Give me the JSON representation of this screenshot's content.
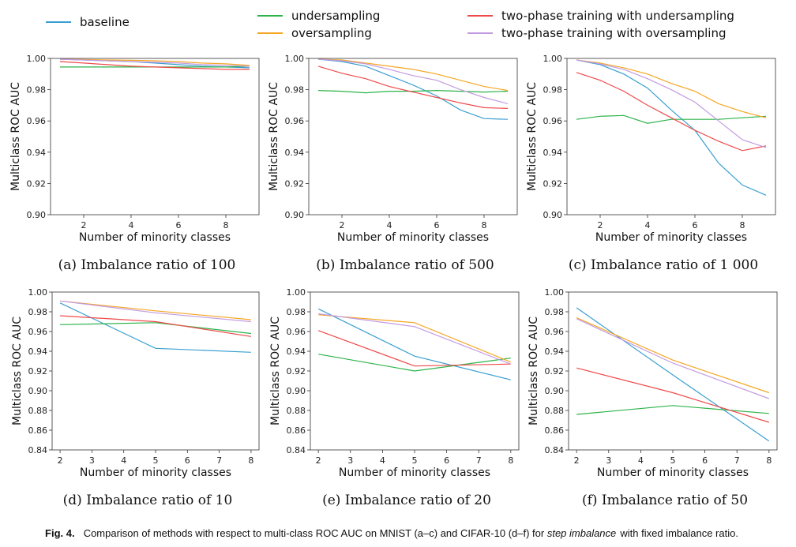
{
  "legend": [
    {
      "name": "baseline",
      "color": "#3a9fd1"
    },
    {
      "name": "undersampling",
      "color": "#2db34a"
    },
    {
      "name": "oversampling",
      "color": "#f5a623"
    },
    {
      "name": "two-phase training with undersampling",
      "color": "#ef4a4a"
    },
    {
      "name": "two-phase training with oversampling",
      "color": "#c39be0"
    }
  ],
  "caption": {
    "label": "Fig. 4.",
    "text_before": "Comparison of methods with respect to multi-class ROC AUC on MNIST (a–c) and CIFAR-10 (d–f) for ",
    "text_italic": "step imbalance",
    "text_after": " with fixed imbalance ratio."
  },
  "chart_data": [
    {
      "type": "line",
      "subtitle": "(a) Imbalance ratio of 100",
      "xlabel": "Number of minority classes",
      "ylabel": "Multiclass ROC AUC",
      "xlim": [
        0.6,
        9.4
      ],
      "ylim": [
        0.9,
        1.0
      ],
      "xticks": [
        2,
        4,
        6,
        8
      ],
      "yticks": [
        0.9,
        0.92,
        0.94,
        0.96,
        0.98,
        1.0
      ],
      "ytick_labels": [
        "0.90",
        "0.92",
        "0.94",
        "0.96",
        "0.98",
        "1.00"
      ],
      "x": [
        1,
        2,
        3,
        4,
        5,
        6,
        7,
        8,
        9
      ],
      "series": [
        {
          "name": "baseline",
          "values": [
            0.9995,
            0.999,
            0.9985,
            0.998,
            0.997,
            0.996,
            0.995,
            0.9945,
            0.994
          ]
        },
        {
          "name": "undersampling",
          "values": [
            0.9945,
            0.9945,
            0.9945,
            0.9945,
            0.9945,
            0.9945,
            0.9945,
            0.9945,
            0.995
          ]
        },
        {
          "name": "oversampling",
          "values": [
            0.9995,
            0.9993,
            0.999,
            0.9988,
            0.9985,
            0.998,
            0.997,
            0.9965,
            0.9955
          ]
        },
        {
          "name": "two-phase training with undersampling",
          "values": [
            0.998,
            0.997,
            0.996,
            0.995,
            0.9945,
            0.994,
            0.9935,
            0.993,
            0.993
          ]
        },
        {
          "name": "two-phase training with oversampling",
          "values": [
            0.9995,
            0.999,
            0.9985,
            0.998,
            0.9975,
            0.997,
            0.996,
            0.9955,
            0.995
          ]
        }
      ]
    },
    {
      "type": "line",
      "subtitle": "(b) Imbalance ratio of 500",
      "xlabel": "Number of minority classes",
      "ylabel": "Multiclass ROC AUC",
      "xlim": [
        0.6,
        9.4
      ],
      "ylim": [
        0.9,
        1.0
      ],
      "xticks": [
        2,
        4,
        6,
        8
      ],
      "yticks": [
        0.9,
        0.92,
        0.94,
        0.96,
        0.98,
        1.0
      ],
      "ytick_labels": [
        "0.90",
        "0.92",
        "0.94",
        "0.96",
        "0.98",
        "1.00"
      ],
      "x": [
        1,
        2,
        3,
        4,
        5,
        6,
        7,
        8,
        9
      ],
      "series": [
        {
          "name": "baseline",
          "values": [
            0.9995,
            0.998,
            0.995,
            0.989,
            0.983,
            0.976,
            0.967,
            0.9615,
            0.961
          ]
        },
        {
          "name": "undersampling",
          "values": [
            0.9795,
            0.979,
            0.978,
            0.979,
            0.979,
            0.9795,
            0.979,
            0.9785,
            0.979
          ]
        },
        {
          "name": "oversampling",
          "values": [
            0.9995,
            0.999,
            0.997,
            0.995,
            0.993,
            0.99,
            0.986,
            0.982,
            0.9795
          ]
        },
        {
          "name": "two-phase training with undersampling",
          "values": [
            0.995,
            0.9905,
            0.987,
            0.982,
            0.9785,
            0.975,
            0.9715,
            0.9685,
            0.968
          ]
        },
        {
          "name": "two-phase training with oversampling",
          "values": [
            0.9995,
            0.9985,
            0.9965,
            0.993,
            0.989,
            0.986,
            0.98,
            0.975,
            0.971
          ]
        }
      ]
    },
    {
      "type": "line",
      "subtitle": "(c) Imbalance ratio of 1 000",
      "xlabel": "Number of minority classes",
      "ylabel": "Multiclass ROC AUC",
      "xlim": [
        0.6,
        9.4
      ],
      "ylim": [
        0.9,
        1.0
      ],
      "xticks": [
        2,
        4,
        6,
        8
      ],
      "yticks": [
        0.9,
        0.92,
        0.94,
        0.96,
        0.98,
        1.0
      ],
      "ytick_labels": [
        "0.90",
        "0.92",
        "0.94",
        "0.96",
        "0.98",
        "1.00"
      ],
      "x": [
        1,
        2,
        3,
        4,
        5,
        6,
        7,
        8,
        9
      ],
      "series": [
        {
          "name": "baseline",
          "values": [
            0.999,
            0.996,
            0.99,
            0.981,
            0.967,
            0.954,
            0.933,
            0.919,
            0.9125
          ]
        },
        {
          "name": "undersampling",
          "values": [
            0.961,
            0.963,
            0.9635,
            0.9585,
            0.961,
            0.961,
            0.961,
            0.962,
            0.963
          ]
        },
        {
          "name": "oversampling",
          "values": [
            0.999,
            0.997,
            0.994,
            0.99,
            0.984,
            0.979,
            0.971,
            0.966,
            0.962
          ]
        },
        {
          "name": "two-phase training with undersampling",
          "values": [
            0.991,
            0.986,
            0.979,
            0.97,
            0.962,
            0.954,
            0.947,
            0.941,
            0.944
          ]
        },
        {
          "name": "two-phase training with oversampling",
          "values": [
            0.999,
            0.9965,
            0.993,
            0.987,
            0.98,
            0.972,
            0.96,
            0.948,
            0.943
          ]
        }
      ]
    },
    {
      "type": "line",
      "subtitle": "(d) Imbalance ratio of 10",
      "xlabel": "Number of minority classes",
      "ylabel": "Multiclass ROC AUC",
      "xlim": [
        1.75,
        8.25
      ],
      "ylim": [
        0.84,
        1.0
      ],
      "xticks": [
        2,
        3,
        4,
        5,
        6,
        7,
        8
      ],
      "yticks": [
        0.84,
        0.86,
        0.88,
        0.9,
        0.92,
        0.94,
        0.96,
        0.98,
        1.0
      ],
      "ytick_labels": [
        "0.84",
        "0.86",
        "0.88",
        "0.90",
        "0.92",
        "0.94",
        "0.96",
        "0.98",
        "1.00"
      ],
      "x": [
        2,
        5,
        8
      ],
      "series": [
        {
          "name": "baseline",
          "values": [
            0.989,
            0.943,
            0.939
          ]
        },
        {
          "name": "undersampling",
          "values": [
            0.967,
            0.969,
            0.958
          ]
        },
        {
          "name": "oversampling",
          "values": [
            0.991,
            0.981,
            0.972
          ]
        },
        {
          "name": "two-phase training with undersampling",
          "values": [
            0.976,
            0.97,
            0.955
          ]
        },
        {
          "name": "two-phase training with oversampling",
          "values": [
            0.991,
            0.979,
            0.97
          ]
        }
      ]
    },
    {
      "type": "line",
      "subtitle": "(e) Imbalance ratio of 20",
      "xlabel": "Number of minority classes",
      "ylabel": "Multiclass ROC AUC",
      "xlim": [
        1.75,
        8.25
      ],
      "ylim": [
        0.84,
        1.0
      ],
      "xticks": [
        2,
        3,
        4,
        5,
        6,
        7,
        8
      ],
      "yticks": [
        0.84,
        0.86,
        0.88,
        0.9,
        0.92,
        0.94,
        0.96,
        0.98,
        1.0
      ],
      "ytick_labels": [
        "0.84",
        "0.86",
        "0.88",
        "0.90",
        "0.92",
        "0.94",
        "0.96",
        "0.98",
        "1.00"
      ],
      "x": [
        2,
        5,
        8
      ],
      "series": [
        {
          "name": "baseline",
          "values": [
            0.983,
            0.935,
            0.911
          ]
        },
        {
          "name": "undersampling",
          "values": [
            0.937,
            0.92,
            0.933
          ]
        },
        {
          "name": "oversampling",
          "values": [
            0.977,
            0.969,
            0.929
          ]
        },
        {
          "name": "two-phase training with undersampling",
          "values": [
            0.961,
            0.925,
            0.927
          ]
        },
        {
          "name": "two-phase training with oversampling",
          "values": [
            0.978,
            0.965,
            0.927
          ]
        }
      ]
    },
    {
      "type": "line",
      "subtitle": "(f) Imbalance ratio of 50",
      "xlabel": "Number of minority classes",
      "ylabel": "Multiclass ROC AUC",
      "xlim": [
        1.75,
        8.25
      ],
      "ylim": [
        0.84,
        1.0
      ],
      "xticks": [
        2,
        3,
        4,
        5,
        6,
        7,
        8
      ],
      "yticks": [
        0.84,
        0.86,
        0.88,
        0.9,
        0.92,
        0.94,
        0.96,
        0.98,
        1.0
      ],
      "ytick_labels": [
        "0.84",
        "0.86",
        "0.88",
        "0.90",
        "0.92",
        "0.94",
        "0.96",
        "0.98",
        "1.00"
      ],
      "x": [
        2,
        5,
        8
      ],
      "series": [
        {
          "name": "baseline",
          "values": [
            0.984,
            0.916,
            0.849
          ]
        },
        {
          "name": "undersampling",
          "values": [
            0.876,
            0.885,
            0.877
          ]
        },
        {
          "name": "oversampling",
          "values": [
            0.974,
            0.931,
            0.898
          ]
        },
        {
          "name": "two-phase training with undersampling",
          "values": [
            0.923,
            0.898,
            0.868
          ]
        },
        {
          "name": "two-phase training with oversampling",
          "values": [
            0.973,
            0.928,
            0.892
          ]
        }
      ]
    }
  ]
}
